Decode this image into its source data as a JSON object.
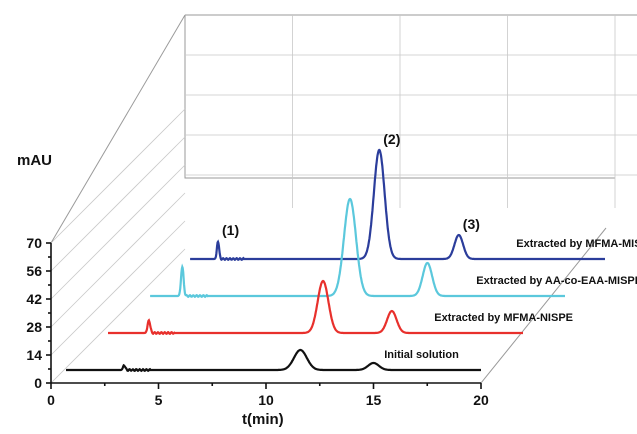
{
  "chart_data": {
    "type": "line",
    "xlabel": "t(min)",
    "ylabel": "mAU",
    "xlim": [
      0,
      20
    ],
    "ylim": [
      0,
      70
    ],
    "x_ticks": [
      "0",
      "5",
      "10",
      "15",
      "20"
    ],
    "y_ticks": [
      "0",
      "14",
      "28",
      "42",
      "56",
      "70"
    ],
    "peak_labels": [
      {
        "text": "(1)",
        "series": 3,
        "x": 2.0
      },
      {
        "text": "(2)",
        "series": 3,
        "x": 9.5
      },
      {
        "text": "(3)",
        "series": 3,
        "x": 13.2
      }
    ],
    "series": [
      {
        "name": "Initial solution",
        "color": "#111111",
        "peaks": [
          {
            "x": 3.4,
            "height": 5,
            "width": 0.05
          },
          {
            "x": 11.6,
            "height": 20,
            "width": 0.3
          },
          {
            "x": 15.0,
            "height": 7,
            "width": 0.25
          }
        ]
      },
      {
        "name": "Extracted by MFMA-NISPE",
        "color": "#e8302c",
        "peaks": [
          {
            "x": 2.6,
            "height": 13,
            "width": 0.06
          },
          {
            "x": 10.7,
            "height": 52,
            "width": 0.25
          },
          {
            "x": 13.9,
            "height": 22,
            "width": 0.22
          }
        ]
      },
      {
        "name": "Extracted by AA-co-EAA-MISPE",
        "color": "#5bc8dc",
        "peaks": [
          {
            "x": 2.2,
            "height": 29,
            "width": 0.06
          },
          {
            "x": 10.0,
            "height": 97,
            "width": 0.28
          },
          {
            "x": 13.6,
            "height": 33,
            "width": 0.22
          }
        ]
      },
      {
        "name": "Extracted by MFMA-MISPE",
        "color": "#2b3d9b",
        "peaks": [
          {
            "x": 2.0,
            "height": 18,
            "width": 0.05
          },
          {
            "x": 9.5,
            "height": 109,
            "width": 0.25
          },
          {
            "x": 13.2,
            "height": 24,
            "width": 0.2
          }
        ]
      }
    ]
  }
}
